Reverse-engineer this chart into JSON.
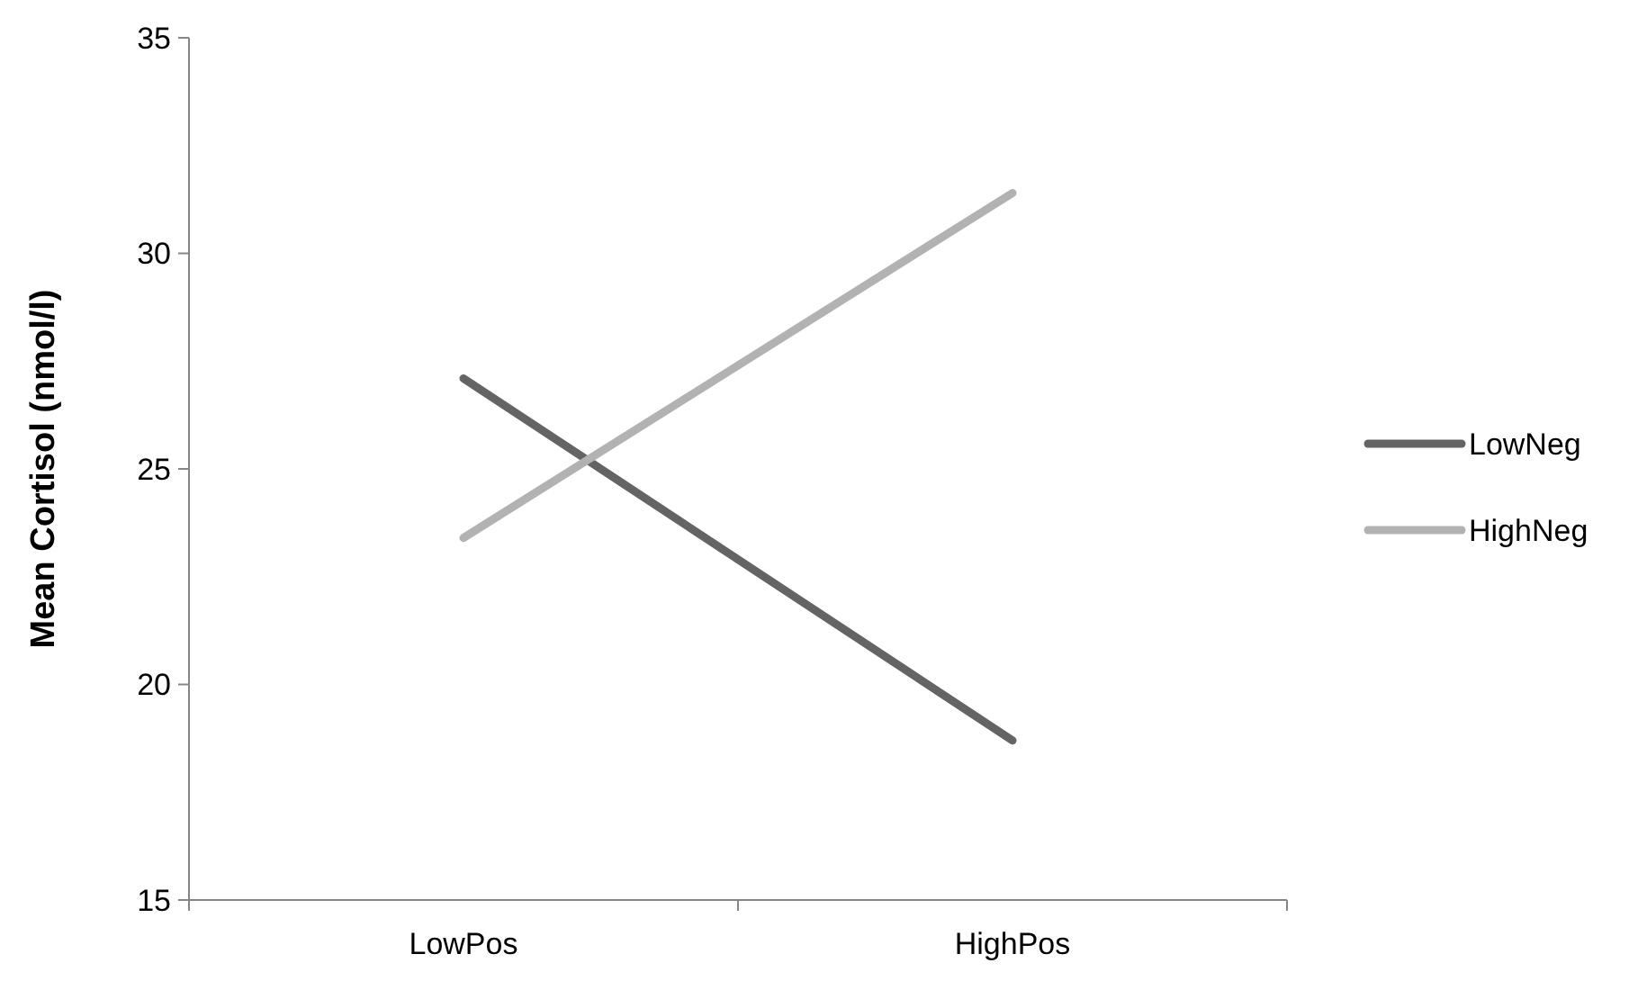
{
  "chart_data": {
    "type": "line",
    "ylabel": "Mean Cortisol (nmol/l)",
    "categories": [
      "LowPos",
      "HighPos"
    ],
    "ylim": [
      15,
      35
    ],
    "yticks": [
      15,
      20,
      25,
      30,
      35
    ],
    "grid": false,
    "legend": "right",
    "marker": "none",
    "series": [
      {
        "name": "LowNeg",
        "color": "#646464",
        "values": [
          27.1,
          18.7
        ]
      },
      {
        "name": "HighNeg",
        "color": "#b2b2b2",
        "values": [
          23.4,
          31.4
        ]
      }
    ]
  }
}
